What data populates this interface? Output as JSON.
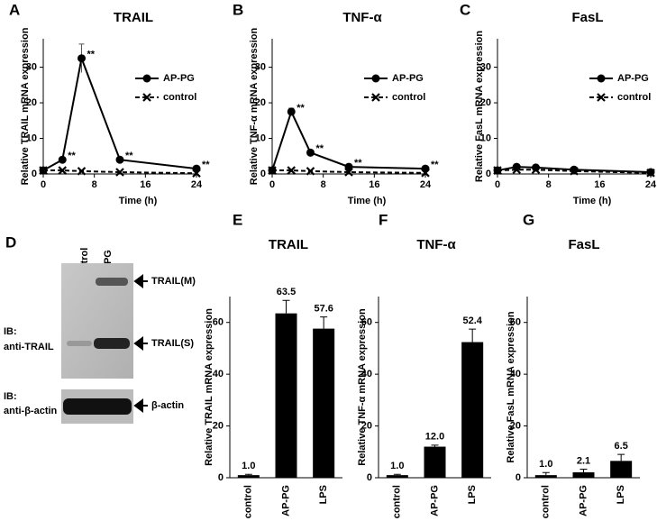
{
  "chart_data": [
    {
      "panel": "A",
      "type": "line",
      "title": "TRAIL",
      "x_label": "Time (h)",
      "y_label": "Relative TRAIL mRNA expression",
      "x": [
        0,
        3,
        6,
        12,
        24
      ],
      "xlim": [
        0,
        24
      ],
      "xticks": [
        0,
        8,
        16,
        24
      ],
      "ylim": [
        0,
        38
      ],
      "yticks": [
        0,
        10,
        20,
        30
      ],
      "legend": "upper right",
      "series": [
        {
          "name": "AP-PG",
          "color": "#000000",
          "marker": "circle",
          "dashed": false,
          "values": [
            1,
            4,
            32.5,
            4,
            1.5
          ],
          "errors": [
            null,
            null,
            4,
            null,
            null
          ],
          "point_labels": [
            null,
            "**",
            "**",
            "**",
            "**"
          ]
        },
        {
          "name": "control",
          "color": "#000000",
          "marker": "x",
          "dashed": true,
          "values": [
            1,
            1,
            0.8,
            0.5,
            0.2
          ]
        }
      ]
    },
    {
      "panel": "B",
      "type": "line",
      "title": "TNF-α",
      "x_label": "Time (h)",
      "y_label": "Relative TNF-α mRNA expression",
      "x": [
        0,
        3,
        6,
        12,
        24
      ],
      "xlim": [
        0,
        24
      ],
      "xticks": [
        0,
        8,
        16,
        24
      ],
      "ylim": [
        0,
        38
      ],
      "yticks": [
        0,
        10,
        20,
        30
      ],
      "legend": "upper right",
      "series": [
        {
          "name": "AP-PG",
          "color": "#000000",
          "marker": "circle",
          "dashed": false,
          "values": [
            1,
            17.5,
            6,
            2,
            1.5
          ],
          "errors": [
            null,
            1,
            null,
            null,
            null
          ],
          "point_labels": [
            null,
            "**",
            "**",
            "**",
            "**"
          ]
        },
        {
          "name": "control",
          "color": "#000000",
          "marker": "x",
          "dashed": true,
          "values": [
            1,
            1,
            0.8,
            0.5,
            0.3
          ]
        }
      ]
    },
    {
      "panel": "C",
      "type": "line",
      "title": "FasL",
      "x_label": "Time (h)",
      "y_label": "Relative FasL mRNA expression",
      "x": [
        0,
        3,
        6,
        12,
        24
      ],
      "xlim": [
        0,
        24
      ],
      "xticks": [
        0,
        8,
        16,
        24
      ],
      "ylim": [
        0,
        38
      ],
      "yticks": [
        0,
        10,
        20,
        30
      ],
      "legend": "upper right",
      "series": [
        {
          "name": "AP-PG",
          "color": "#000000",
          "marker": "circle",
          "dashed": false,
          "values": [
            1,
            2,
            1.8,
            1.2,
            0.5
          ]
        },
        {
          "name": "control",
          "color": "#000000",
          "marker": "x",
          "dashed": true,
          "values": [
            1,
            1.2,
            1.2,
            0.8,
            0.3
          ]
        }
      ]
    },
    {
      "panel": "E",
      "type": "bar",
      "title": "TRAIL",
      "y_label": "Relative TRAIL mRNA expression",
      "color": "#000000",
      "categories": [
        "control",
        "AP-PG",
        "LPS"
      ],
      "values": [
        1.0,
        63.5,
        57.6
      ],
      "value_labels": [
        "1.0",
        "63.5",
        "57.6"
      ],
      "errors": [
        0.3,
        5,
        4.5
      ],
      "ylim": [
        0,
        70
      ],
      "yticks": [
        0,
        20,
        40,
        60
      ]
    },
    {
      "panel": "F",
      "type": "bar",
      "title": "TNF-α",
      "y_label": "Relative TNF-α mRNA expression",
      "color": "#000000",
      "categories": [
        "control",
        "AP-PG",
        "LPS"
      ],
      "values": [
        1.0,
        12.0,
        52.4
      ],
      "value_labels": [
        "1.0",
        "12.0",
        "52.4"
      ],
      "errors": [
        0.3,
        0.6,
        5
      ],
      "ylim": [
        0,
        70
      ],
      "yticks": [
        0,
        20,
        40,
        60
      ]
    },
    {
      "panel": "G",
      "type": "bar",
      "title": "FasL",
      "y_label": "Relative FasL mRNA expression",
      "color": "#000000",
      "categories": [
        "control",
        "AP-PG",
        "LPS"
      ],
      "values": [
        1.0,
        2.1,
        6.5
      ],
      "value_labels": [
        "1.0",
        "2.1",
        "6.5"
      ],
      "errors": [
        1,
        1.2,
        2.5
      ],
      "ylim": [
        0,
        70
      ],
      "yticks": [
        0,
        20,
        40,
        60
      ]
    }
  ],
  "blot": {
    "panel": "D",
    "lanes": [
      "control",
      "AP-PG"
    ],
    "blots": [
      {
        "ib": "IB:",
        "antibody": "anti-TRAIL",
        "bands": [
          "TRAIL(M)",
          "TRAIL(S)"
        ]
      },
      {
        "ib": "IB:",
        "antibody": "anti-β-actin",
        "bands": [
          "β-actin"
        ]
      }
    ]
  }
}
